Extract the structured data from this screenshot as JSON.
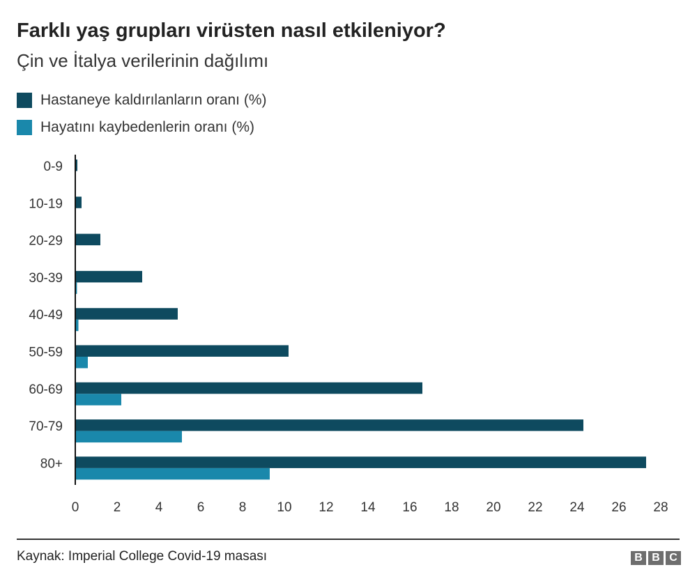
{
  "title": "Farklı yaş grupları virüsten nasıl etkileniyor?",
  "subtitle": "Çin ve İtalya verilerinin dağılımı",
  "source": "Kaynak: Imperial College Covid-19 masası",
  "logo": "BBC",
  "colors": {
    "hospitalised": "#0e4a5f",
    "deaths": "#1a88ab"
  },
  "chart_data": {
    "type": "bar",
    "orientation": "horizontal",
    "categories": [
      "0-9",
      "10-19",
      "20-29",
      "30-39",
      "40-49",
      "50-59",
      "60-69",
      "70-79",
      "80+"
    ],
    "series": [
      {
        "name": "Hastaneye kaldırılanların oranı (%)",
        "values": [
          0.1,
          0.3,
          1.2,
          3.2,
          4.9,
          10.2,
          16.6,
          24.3,
          27.3
        ]
      },
      {
        "name": "Hayatını kaybedenlerin oranı (%)",
        "values": [
          0.002,
          0.006,
          0.03,
          0.08,
          0.15,
          0.6,
          2.2,
          5.1,
          9.3
        ]
      }
    ],
    "xlim": [
      0,
      28
    ],
    "xticks": [
      "0",
      "2",
      "4",
      "6",
      "8",
      "10",
      "12",
      "14",
      "16",
      "18",
      "20",
      "22",
      "24",
      "26",
      "28"
    ],
    "grid": false,
    "legend": "top-left"
  }
}
